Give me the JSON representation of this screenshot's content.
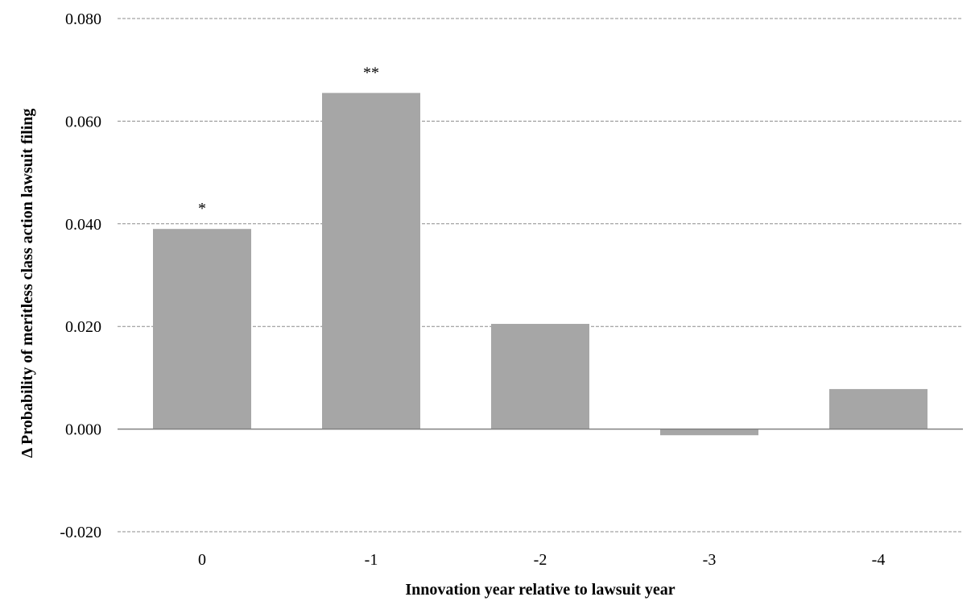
{
  "chart_data": {
    "type": "bar",
    "title": "",
    "xlabel": "Innovation year relative to lawsuit year",
    "ylabel": "Δ Probability of meritless class action lawsuit filing",
    "categories": [
      "0",
      "-1",
      "-2",
      "-3",
      "-4"
    ],
    "values": [
      0.039,
      0.0655,
      0.0205,
      -0.0012,
      0.0078
    ],
    "annotations": [
      "*",
      "**",
      "",
      "",
      ""
    ],
    "ylim": [
      -0.02,
      0.08
    ],
    "yticks": [
      -0.02,
      0.0,
      0.02,
      0.04,
      0.06,
      0.08
    ],
    "ytick_labels": [
      "-0.020",
      "0.000",
      "0.020",
      "0.040",
      "0.060",
      "0.080"
    ],
    "grid": true,
    "legend": "none",
    "colors": {
      "bar": "#a6a6a6",
      "grid": "#8c8c8c",
      "zero_line": "#808080"
    }
  }
}
